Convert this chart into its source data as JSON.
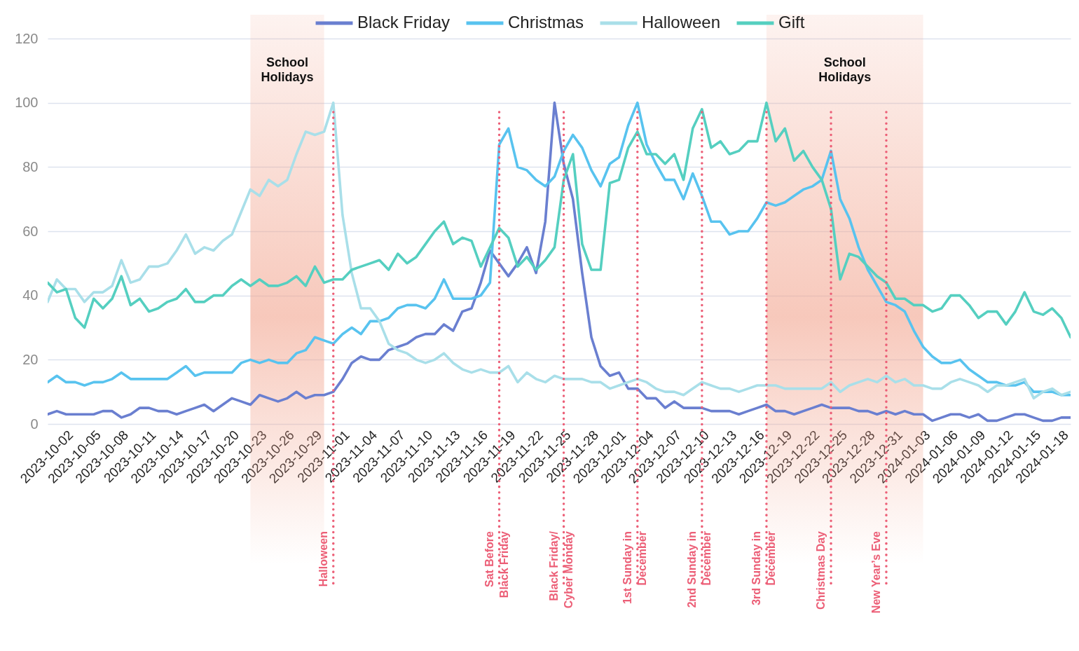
{
  "chart_data": {
    "type": "line",
    "x": [
      "2023-09-30",
      "2023-10-01",
      "2023-10-02",
      "2023-10-03",
      "2023-10-04",
      "2023-10-05",
      "2023-10-06",
      "2023-10-07",
      "2023-10-08",
      "2023-10-09",
      "2023-10-10",
      "2023-10-11",
      "2023-10-12",
      "2023-10-13",
      "2023-10-14",
      "2023-10-15",
      "2023-10-16",
      "2023-10-17",
      "2023-10-18",
      "2023-10-19",
      "2023-10-20",
      "2023-10-21",
      "2023-10-22",
      "2023-10-23",
      "2023-10-24",
      "2023-10-25",
      "2023-10-26",
      "2023-10-27",
      "2023-10-28",
      "2023-10-29",
      "2023-10-30",
      "2023-10-31",
      "2023-11-01",
      "2023-11-02",
      "2023-11-03",
      "2023-11-04",
      "2023-11-05",
      "2023-11-06",
      "2023-11-07",
      "2023-11-08",
      "2023-11-09",
      "2023-11-10",
      "2023-11-11",
      "2023-11-12",
      "2023-11-13",
      "2023-11-14",
      "2023-11-15",
      "2023-11-16",
      "2023-11-17",
      "2023-11-18",
      "2023-11-19",
      "2023-11-20",
      "2023-11-21",
      "2023-11-22",
      "2023-11-23",
      "2023-11-24",
      "2023-11-25",
      "2023-11-26",
      "2023-11-27",
      "2023-11-28",
      "2023-11-29",
      "2023-11-30",
      "2023-12-01",
      "2023-12-02",
      "2023-12-03",
      "2023-12-04",
      "2023-12-05",
      "2023-12-06",
      "2023-12-07",
      "2023-12-08",
      "2023-12-09",
      "2023-12-10",
      "2023-12-11",
      "2023-12-12",
      "2023-12-13",
      "2023-12-14",
      "2023-12-15",
      "2023-12-16",
      "2023-12-17",
      "2023-12-18",
      "2023-12-19",
      "2023-12-20",
      "2023-12-21",
      "2023-12-22",
      "2023-12-23",
      "2023-12-24",
      "2023-12-25",
      "2023-12-26",
      "2023-12-27",
      "2023-12-28",
      "2023-12-29",
      "2023-12-30",
      "2023-12-31",
      "2024-01-01",
      "2024-01-02",
      "2024-01-03",
      "2024-01-04",
      "2024-01-05",
      "2024-01-06",
      "2024-01-07",
      "2024-01-08",
      "2024-01-09",
      "2024-01-10",
      "2024-01-11",
      "2024-01-12",
      "2024-01-13",
      "2024-01-14",
      "2024-01-15",
      "2024-01-16",
      "2024-01-17",
      "2024-01-18",
      "2024-01-19"
    ],
    "series": [
      {
        "name": "Black Friday",
        "color": "#6a7fd0",
        "values": [
          3,
          4,
          3,
          3,
          3,
          3,
          4,
          4,
          2,
          3,
          5,
          5,
          4,
          4,
          3,
          4,
          5,
          6,
          4,
          6,
          8,
          7,
          6,
          9,
          8,
          7,
          8,
          10,
          8,
          9,
          9,
          10,
          14,
          19,
          21,
          20,
          20,
          23,
          24,
          25,
          27,
          28,
          28,
          31,
          29,
          35,
          36,
          44,
          54,
          50,
          46,
          50,
          55,
          47,
          63,
          100,
          81,
          70,
          47,
          27,
          18,
          15,
          16,
          11,
          11,
          8,
          8,
          5,
          7,
          5,
          5,
          5,
          4,
          4,
          4,
          3,
          4,
          5,
          6,
          4,
          4,
          3,
          4,
          5,
          6,
          5,
          5,
          5,
          4,
          4,
          3,
          4,
          3,
          4,
          3,
          3,
          1,
          2,
          3,
          3,
          2,
          3,
          1,
          1,
          2,
          3,
          3,
          2,
          1,
          1,
          2,
          2
        ]
      },
      {
        "name": "Christmas",
        "color": "#58c3ef",
        "values": [
          13,
          15,
          13,
          13,
          12,
          13,
          13,
          14,
          16,
          14,
          14,
          14,
          14,
          14,
          16,
          18,
          15,
          16,
          16,
          16,
          16,
          19,
          20,
          19,
          20,
          19,
          19,
          22,
          23,
          27,
          26,
          25,
          28,
          30,
          28,
          32,
          32,
          33,
          36,
          37,
          37,
          36,
          39,
          45,
          39,
          39,
          39,
          40,
          44,
          87,
          92,
          80,
          79,
          76,
          74,
          77,
          85,
          90,
          86,
          79,
          74,
          81,
          83,
          93,
          100,
          87,
          81,
          76,
          76,
          70,
          78,
          71,
          63,
          63,
          59,
          60,
          60,
          64,
          69,
          68,
          69,
          71,
          73,
          74,
          76,
          85,
          70,
          64,
          55,
          48,
          43,
          38,
          37,
          35,
          29,
          24,
          21,
          19,
          19,
          20,
          17,
          15,
          13,
          13,
          12,
          12,
          13,
          10,
          10,
          10,
          9,
          9
        ]
      },
      {
        "name": "Halloween",
        "color": "#a9dfe9",
        "values": [
          38,
          45,
          42,
          42,
          38,
          41,
          41,
          43,
          51,
          44,
          45,
          49,
          49,
          50,
          54,
          59,
          53,
          55,
          54,
          57,
          59,
          66,
          73,
          71,
          76,
          74,
          76,
          84,
          91,
          90,
          91,
          100,
          65,
          47,
          36,
          36,
          32,
          25,
          23,
          22,
          20,
          19,
          20,
          22,
          19,
          17,
          16,
          17,
          16,
          16,
          18,
          13,
          16,
          14,
          13,
          15,
          14,
          14,
          14,
          13,
          13,
          11,
          12,
          13,
          14,
          13,
          11,
          10,
          10,
          9,
          11,
          13,
          12,
          11,
          11,
          10,
          11,
          12,
          12,
          12,
          11,
          11,
          11,
          11,
          11,
          13,
          10,
          12,
          13,
          14,
          13,
          15,
          13,
          14,
          12,
          12,
          11,
          11,
          13,
          14,
          13,
          12,
          10,
          12,
          12,
          13,
          14,
          8,
          10,
          11,
          9,
          10
        ]
      },
      {
        "name": "Gift",
        "color": "#55cfc0",
        "values": [
          44,
          41,
          42,
          33,
          30,
          39,
          36,
          39,
          46,
          37,
          39,
          35,
          36,
          38,
          39,
          42,
          38,
          38,
          40,
          40,
          43,
          45,
          43,
          45,
          43,
          43,
          44,
          46,
          43,
          49,
          44,
          45,
          45,
          48,
          49,
          50,
          51,
          48,
          53,
          50,
          52,
          56,
          60,
          63,
          56,
          58,
          57,
          49,
          55,
          61,
          58,
          49,
          52,
          48,
          51,
          55,
          76,
          84,
          56,
          48,
          48,
          75,
          76,
          86,
          91,
          84,
          84,
          81,
          84,
          76,
          92,
          98,
          86,
          88,
          84,
          85,
          88,
          88,
          100,
          88,
          92,
          82,
          85,
          80,
          76,
          67,
          45,
          53,
          52,
          49,
          46,
          44,
          39,
          39,
          37,
          37,
          35,
          36,
          40,
          40,
          37,
          33,
          35,
          35,
          31,
          35,
          41,
          35,
          34,
          36,
          33,
          27
        ]
      }
    ],
    "xlim": [
      "2023-09-30",
      "2024-01-19"
    ],
    "xticks": [
      "2023-10-02",
      "2023-10-05",
      "2023-10-08",
      "2023-10-11",
      "2023-10-14",
      "2023-10-17",
      "2023-10-20",
      "2023-10-23",
      "2023-10-26",
      "2023-10-29",
      "2023-11-01",
      "2023-11-04",
      "2023-11-07",
      "2023-11-10",
      "2023-11-13",
      "2023-11-16",
      "2023-11-19",
      "2023-11-22",
      "2023-11-25",
      "2023-11-28",
      "2023-12-01",
      "2023-12-04",
      "2023-12-07",
      "2023-12-10",
      "2023-12-13",
      "2023-12-16",
      "2023-12-19",
      "2023-12-22",
      "2023-12-25",
      "2023-12-28",
      "2023-12-31",
      "2024-01-03",
      "2024-01-06",
      "2024-01-09",
      "2024-01-12",
      "2024-01-15",
      "2024-01-18"
    ],
    "ylim": [
      0,
      120
    ],
    "yticks": [
      0,
      20,
      40,
      60,
      80,
      100,
      120
    ],
    "grid": "y",
    "legend": "top",
    "line_style": "solid",
    "bands": [
      {
        "axis": "x",
        "from": "2023-10-22",
        "to": "2023-10-30",
        "label": "School\nHolidays",
        "color": "#f2a48e"
      },
      {
        "axis": "x",
        "from": "2023-12-17",
        "to": "2024-01-03",
        "label": "School\nHolidays",
        "color": "#f2a48e"
      }
    ],
    "ref_lines": [
      {
        "axis": "x",
        "value": "2023-10-31",
        "label": "Halloween",
        "color": "#ec5f77",
        "line_style": "dotted"
      },
      {
        "axis": "x",
        "value": "2023-11-18",
        "label": "Sat Before\nBlack Friday",
        "color": "#ec5f77",
        "line_style": "dotted"
      },
      {
        "axis": "x",
        "value": "2023-11-25",
        "label": "Black Friday/\nCyber Monday",
        "color": "#ec5f77",
        "line_style": "dotted"
      },
      {
        "axis": "x",
        "value": "2023-12-03",
        "label": "1st Sunday in\nDecember",
        "color": "#ec5f77",
        "line_style": "dotted"
      },
      {
        "axis": "x",
        "value": "2023-12-10",
        "label": "2nd  Sunday in\nDecember",
        "color": "#ec5f77",
        "line_style": "dotted"
      },
      {
        "axis": "x",
        "value": "2023-12-17",
        "label": "3rd  Sunday in\nDecember",
        "color": "#ec5f77",
        "line_style": "dotted"
      },
      {
        "axis": "x",
        "value": "2023-12-24",
        "label": "Christmas Day",
        "color": "#ec5f77",
        "line_style": "dotted"
      },
      {
        "axis": "x",
        "value": "2023-12-30",
        "label": "New Year’s Eve",
        "color": "#ec5f77",
        "line_style": "dotted"
      }
    ]
  }
}
